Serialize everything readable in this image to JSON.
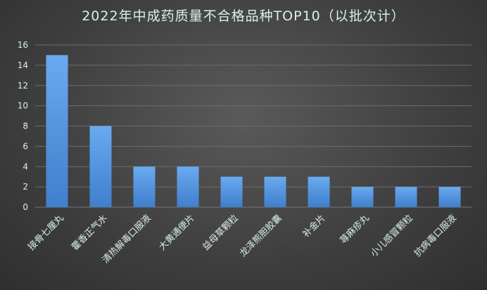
{
  "chart_data": {
    "type": "bar",
    "title": "2022年中成药质量不合格品种TOP10（以批次计）",
    "categories": [
      "接骨七厘丸",
      "藿香正气水",
      "清热解毒口服液",
      "大黄通便片",
      "益母草颗粒",
      "龙泽熊胆胶囊",
      "补金片",
      "荨麻疹丸",
      "小儿感冒颗粒",
      "抗病毒口服液"
    ],
    "values": [
      15,
      8,
      4,
      4,
      3,
      3,
      3,
      2,
      2,
      2
    ],
    "yticks": [
      0,
      2,
      4,
      6,
      8,
      10,
      12,
      14,
      16
    ],
    "ylim": [
      0,
      16
    ],
    "xlabel": "",
    "ylabel": "",
    "grid": true,
    "legend": "none",
    "colors": {
      "bar_top": "#6aaaf0",
      "bar_bottom": "#3f7fcc",
      "grid": "#6c6c6c",
      "text": "#d9f2e4"
    }
  }
}
